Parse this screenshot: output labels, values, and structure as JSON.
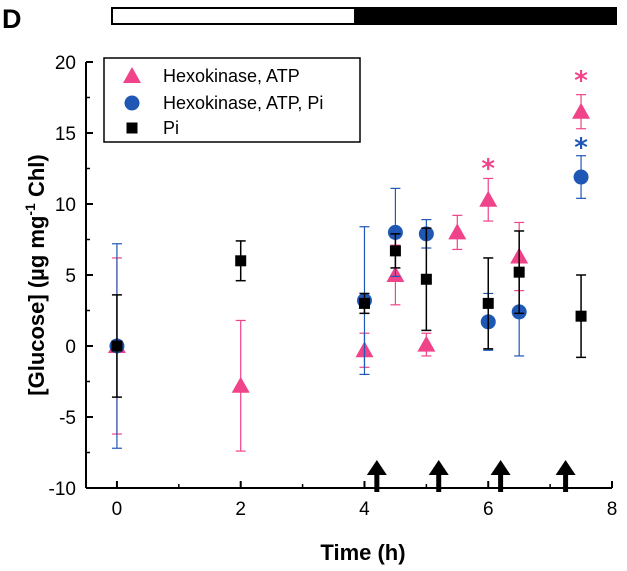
{
  "panel_label": "D",
  "colors": {
    "hexo_atp": "#f0438a",
    "hexo_atp_pi": "#1f57b5",
    "pi": "#000000",
    "bar_light": "#ffffff",
    "bar_dark": "#000000"
  },
  "chart_data": {
    "type": "scatter",
    "xlabel": "Time (h)",
    "ylabel": "[Glucose] (µg mg⁻¹ Chl)",
    "ylabel_parts": {
      "main": "[Glucose] (µg mg",
      "sup": "-1",
      "tail": " Chl)"
    },
    "xlim": [
      -0.5,
      8
    ],
    "ylim": [
      -10,
      20
    ],
    "xticks": [
      0,
      2,
      4,
      6,
      8
    ],
    "yticks": [
      -10,
      -5,
      0,
      5,
      10,
      15,
      20
    ],
    "grid": false,
    "legend_position": "top-left",
    "light_dark_bar": {
      "light": [
        -0.5,
        3.6
      ],
      "dark": [
        3.6,
        8
      ]
    },
    "arrows_at": [
      4.2,
      5.2,
      6.2,
      7.25
    ],
    "series": [
      {
        "name": "Hexokinase, ATP",
        "marker": "triangle",
        "color": "#f0438a",
        "points": [
          {
            "x": 0,
            "y": 0,
            "err": 6.2
          },
          {
            "x": 2,
            "y": -2.8,
            "err": 4.6
          },
          {
            "x": 4,
            "y": -0.3,
            "err": 1.2
          },
          {
            "x": 4.5,
            "y": 5.0,
            "err": 2.1
          },
          {
            "x": 5,
            "y": 0.1,
            "err": 0.8
          },
          {
            "x": 5.5,
            "y": 8.0,
            "err": 1.2
          },
          {
            "x": 6,
            "y": 10.3,
            "err": 1.5
          },
          {
            "x": 6.5,
            "y": 6.3,
            "err": 2.4
          },
          {
            "x": 7.5,
            "y": 16.5,
            "err": 1.2
          }
        ]
      },
      {
        "name": "Hexokinase, ATP, Pi",
        "marker": "circle",
        "color": "#1f57b5",
        "points": [
          {
            "x": 0,
            "y": 0,
            "err": 7.2
          },
          {
            "x": 4,
            "y": 3.2,
            "err": 5.2
          },
          {
            "x": 4.5,
            "y": 8.0,
            "err": 3.1
          },
          {
            "x": 5,
            "y": 7.9,
            "err": 1.0
          },
          {
            "x": 6,
            "y": 1.7,
            "err": 2.0
          },
          {
            "x": 6.5,
            "y": 2.4,
            "err": 3.1
          },
          {
            "x": 7.5,
            "y": 11.9,
            "err": 1.5
          }
        ]
      },
      {
        "name": "Pi",
        "marker": "square",
        "color": "#000000",
        "points": [
          {
            "x": 0,
            "y": 0,
            "err": 3.6
          },
          {
            "x": 2,
            "y": 6.0,
            "err": 1.4
          },
          {
            "x": 4,
            "y": 3.0,
            "err": 0.7
          },
          {
            "x": 4.5,
            "y": 6.7,
            "err": 1.2
          },
          {
            "x": 5,
            "y": 4.7,
            "err": 3.6
          },
          {
            "x": 6,
            "y": 3.0,
            "err": 3.2
          },
          {
            "x": 6.5,
            "y": 5.2,
            "err": 2.9
          },
          {
            "x": 7.5,
            "y": 2.1,
            "err": 2.9
          }
        ]
      }
    ],
    "annotations": [
      {
        "text": "*",
        "x": 6,
        "y": 12.6,
        "color": "#f0438a"
      },
      {
        "text": "*",
        "x": 7.5,
        "y": 18.8,
        "color": "#f0438a"
      },
      {
        "text": "*",
        "x": 7.5,
        "y": 14.1,
        "color": "#1f57b5"
      }
    ]
  }
}
